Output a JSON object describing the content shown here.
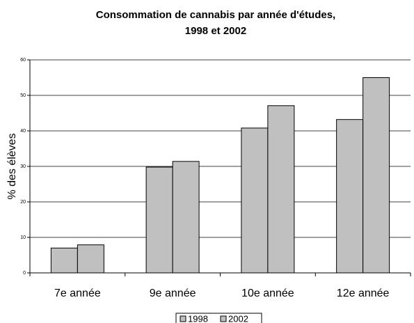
{
  "chart_data": {
    "type": "bar",
    "title": [
      "Consommation de cannabis par année d'études,",
      "1998 et 2002"
    ],
    "y_label": "% des élèves",
    "categories": [
      "7e année",
      "9e année",
      "10e année",
      "12e année"
    ],
    "series": [
      {
        "name": "1998",
        "color": "#c0c0c0",
        "values": [
          7.0,
          29.8,
          40.8,
          43.2
        ]
      },
      {
        "name": "2002",
        "color": "#c0c0c0",
        "values": [
          7.9,
          31.4,
          47.1,
          55.0
        ]
      }
    ],
    "ylim": [
      0,
      60
    ],
    "yticks": [
      0,
      10,
      20,
      30,
      40,
      50,
      60
    ],
    "grid": true,
    "legend": "bottom"
  }
}
